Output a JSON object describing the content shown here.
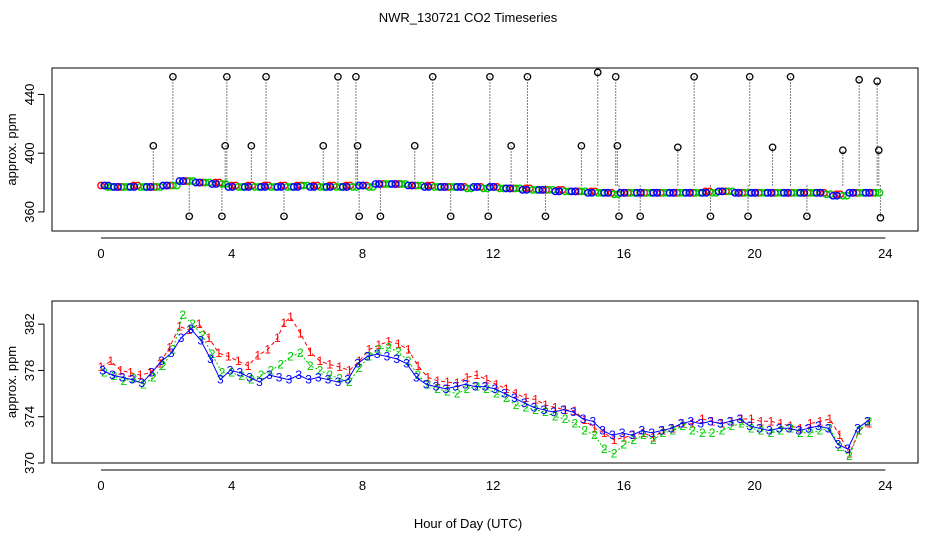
{
  "figure": {
    "title": "NWR_130721  CO2 Timeseries",
    "xlabel": "Hour of Day (UTC)"
  },
  "colors": {
    "series1": "#ff0000",
    "series2": "#00cc00",
    "series3": "#0000ff",
    "marker": "#000000",
    "cyan": "#00e5ee"
  },
  "chart_data": [
    {
      "type": "scatter",
      "panel": "top",
      "ylabel": "approx. ppm",
      "xlim": [
        -1.5,
        25
      ],
      "ylim": [
        347,
        458
      ],
      "x_ticks": [
        0,
        4,
        8,
        12,
        16,
        20,
        24
      ],
      "y_ticks": [
        360,
        400,
        440
      ],
      "series": [
        {
          "x": [
            0.0,
            0.5,
            1.0,
            1.5,
            2.0,
            2.5,
            3.0,
            3.5,
            4.0,
            4.5,
            5.0,
            5.5,
            6.0,
            6.5,
            7.0,
            7.5,
            8.0,
            8.5,
            9.0,
            9.5,
            10.0,
            10.5,
            11.0,
            11.5,
            12.0,
            12.5,
            13.0,
            13.5,
            14.0,
            14.5,
            15.0,
            15.5,
            16.0,
            16.5,
            17.0,
            17.5,
            18.0,
            18.5,
            19.0,
            19.5,
            20.0,
            20.5,
            21.0,
            21.5,
            22.0,
            22.5,
            23.0,
            23.5
          ],
          "y": [
            378,
            377,
            378,
            377,
            378,
            381,
            380,
            380,
            378,
            378,
            378,
            378,
            378,
            378,
            378,
            378,
            378,
            379,
            379,
            378,
            378,
            377,
            377,
            377,
            377,
            376,
            376,
            375,
            375,
            374,
            374,
            373,
            373,
            373,
            373,
            373,
            373,
            374,
            374,
            373,
            373,
            373,
            373,
            373,
            373,
            372,
            373,
            373
          ]
        },
        {
          "x": [
            0.2,
            0.7,
            1.2,
            1.7,
            2.2,
            2.7,
            3.2,
            3.7,
            4.2,
            4.7,
            5.2,
            5.7,
            6.2,
            6.7,
            7.2,
            7.7,
            8.2,
            8.7,
            9.2,
            9.7,
            10.2,
            10.7,
            11.2,
            11.7,
            12.2,
            12.7,
            13.2,
            13.7,
            14.2,
            14.7,
            15.2,
            15.7,
            16.2,
            16.7,
            17.2,
            17.7,
            18.2,
            18.7,
            19.2,
            19.7,
            20.2,
            20.7,
            21.2,
            21.7,
            22.2,
            22.7,
            23.2,
            23.7
          ],
          "y": [
            377,
            377,
            377,
            377,
            378,
            381,
            380,
            379,
            377,
            377,
            377,
            377,
            378,
            377,
            377,
            377,
            377,
            379,
            379,
            378,
            377,
            377,
            376,
            376,
            376,
            376,
            375,
            375,
            374,
            374,
            373,
            372,
            373,
            373,
            373,
            373,
            373,
            373,
            374,
            373,
            373,
            373,
            373,
            373,
            372,
            371,
            373,
            373
          ]
        },
        {
          "x": [
            0.1,
            0.4,
            0.9,
            1.4,
            1.9,
            2.4,
            2.9,
            3.4,
            3.9,
            4.4,
            4.9,
            5.4,
            5.9,
            6.4,
            6.9,
            7.4,
            7.9,
            8.4,
            8.9,
            9.4,
            9.9,
            10.4,
            10.9,
            11.4,
            11.9,
            12.4,
            12.9,
            13.4,
            13.9,
            14.4,
            14.9,
            15.4,
            15.9,
            16.4,
            16.9,
            17.4,
            17.9,
            18.4,
            18.9,
            19.4,
            19.9,
            20.4,
            20.9,
            21.4,
            21.9,
            22.4,
            22.9,
            23.4
          ],
          "y": [
            378,
            377,
            377,
            377,
            378,
            381,
            380,
            379,
            377,
            377,
            377,
            377,
            377,
            377,
            377,
            377,
            378,
            379,
            379,
            378,
            377,
            377,
            377,
            377,
            377,
            376,
            375,
            375,
            374,
            374,
            373,
            373,
            373,
            373,
            373,
            373,
            373,
            373,
            374,
            373,
            373,
            373,
            373,
            373,
            373,
            371,
            373,
            373
          ]
        }
      ],
      "spikes": {
        "x": [
          1.6,
          2.2,
          2.7,
          3.7,
          3.8,
          3.85,
          4.6,
          5.05,
          5.6,
          6.8,
          7.25,
          7.8,
          7.85,
          7.9,
          8.55,
          9.6,
          10.15,
          10.7,
          11.85,
          11.9,
          12.55,
          13.05,
          13.6,
          14.7,
          15.2,
          15.75,
          15.8,
          15.85,
          16.5,
          17.65,
          18.15,
          18.65,
          19.8,
          19.85,
          20.55,
          21.1,
          21.6,
          22.7,
          23.2,
          23.75,
          23.8,
          23.85
        ],
        "y": [
          405,
          452,
          357,
          357,
          405,
          452,
          405,
          452,
          357,
          405,
          452,
          452,
          405,
          357,
          357,
          405,
          452,
          357,
          357,
          452,
          405,
          452,
          357,
          405,
          455,
          452,
          405,
          357,
          357,
          404,
          452,
          357,
          357,
          452,
          404,
          452,
          357,
          402,
          450,
          449,
          402,
          356
        ]
      }
    },
    {
      "type": "line",
      "panel": "bottom",
      "ylabel": "approx. ppm",
      "xlim": [
        -1.5,
        25
      ],
      "ylim": [
        370,
        384
      ],
      "x_ticks": [
        0,
        4,
        8,
        12,
        16,
        20,
        24
      ],
      "y_ticks": [
        370,
        374,
        378,
        382
      ],
      "series": [
        {
          "name": "1",
          "x": [
            0.0,
            0.3,
            0.6,
            0.9,
            1.2,
            1.5,
            1.8,
            2.1,
            2.4,
            2.7,
            3.0,
            3.3,
            3.6,
            3.9,
            4.2,
            4.5,
            4.8,
            5.1,
            5.4,
            5.6,
            5.8,
            6.1,
            6.4,
            6.7,
            7.0,
            7.3,
            7.6,
            7.9,
            8.2,
            8.5,
            8.8,
            9.1,
            9.4,
            9.7,
            10.0,
            10.3,
            10.6,
            10.9,
            11.2,
            11.5,
            11.8,
            12.1,
            12.4,
            12.7,
            13.0,
            13.3,
            13.6,
            13.9,
            14.2,
            14.5,
            14.8,
            15.1,
            15.4,
            15.7,
            16.0,
            16.3,
            16.6,
            16.9,
            17.2,
            17.5,
            17.8,
            18.1,
            18.4,
            18.7,
            19.0,
            19.3,
            19.6,
            19.9,
            20.2,
            20.5,
            20.8,
            21.1,
            21.4,
            21.7,
            22.0,
            22.3,
            22.6,
            22.9,
            23.2,
            23.5
          ],
          "y": [
            378.3,
            378.8,
            378.0,
            377.8,
            377.6,
            377.8,
            378.6,
            380.0,
            381.8,
            381.5,
            382.0,
            380.8,
            379.5,
            379.2,
            378.8,
            378.4,
            379.3,
            379.8,
            380.8,
            382.1,
            382.6,
            381.2,
            379.6,
            378.8,
            378.5,
            378.3,
            378.0,
            378.8,
            379.8,
            380.2,
            380.5,
            380.3,
            379.8,
            378.4,
            377.4,
            377.1,
            377.0,
            376.9,
            377.4,
            377.6,
            377.2,
            376.8,
            376.4,
            376.0,
            375.6,
            375.5,
            375.0,
            374.8,
            374.6,
            374.5,
            373.7,
            373.0,
            372.6,
            372.0,
            372.2,
            372.4,
            372.6,
            372.2,
            372.8,
            373.0,
            373.4,
            373.4,
            373.8,
            373.6,
            373.4,
            373.6,
            373.8,
            373.8,
            373.6,
            373.6,
            373.4,
            373.2,
            373.0,
            373.4,
            373.6,
            373.8,
            372.4,
            370.8,
            372.8,
            373.4
          ]
        },
        {
          "name": "2",
          "x": [
            0.1,
            0.4,
            0.7,
            1.0,
            1.3,
            1.6,
            1.9,
            2.2,
            2.5,
            2.8,
            3.1,
            3.4,
            3.7,
            4.0,
            4.3,
            4.6,
            4.9,
            5.2,
            5.5,
            5.8,
            6.1,
            6.4,
            6.7,
            7.0,
            7.3,
            7.6,
            7.9,
            8.2,
            8.5,
            8.8,
            9.1,
            9.4,
            9.7,
            10.0,
            10.3,
            10.6,
            10.9,
            11.2,
            11.5,
            11.8,
            12.1,
            12.4,
            12.7,
            13.0,
            13.3,
            13.6,
            13.9,
            14.2,
            14.5,
            14.8,
            15.1,
            15.4,
            15.7,
            16.0,
            16.3,
            16.6,
            16.9,
            17.2,
            17.5,
            17.8,
            18.1,
            18.4,
            18.7,
            19.0,
            19.3,
            19.6,
            19.9,
            20.2,
            20.5,
            20.8,
            21.1,
            21.4,
            21.7,
            22.0,
            22.3,
            22.6,
            22.9,
            23.2,
            23.5
          ],
          "y": [
            377.8,
            377.5,
            377.1,
            377.3,
            376.8,
            377.4,
            378.4,
            379.8,
            382.8,
            382.0,
            381.0,
            379.4,
            377.8,
            377.8,
            377.5,
            377.2,
            377.6,
            378.0,
            378.5,
            379.2,
            379.5,
            378.4,
            378.0,
            377.6,
            377.3,
            377.0,
            378.2,
            379.2,
            379.8,
            380.0,
            379.6,
            378.8,
            377.6,
            376.8,
            376.4,
            376.2,
            376.0,
            376.4,
            376.6,
            376.4,
            376.0,
            375.6,
            375.0,
            374.8,
            374.6,
            374.4,
            374.0,
            373.8,
            373.4,
            372.8,
            372.4,
            371.2,
            370.8,
            371.6,
            372.0,
            372.4,
            372.0,
            372.6,
            372.8,
            373.2,
            372.8,
            372.6,
            372.6,
            372.8,
            373.2,
            373.4,
            373.0,
            372.8,
            372.6,
            372.8,
            373.0,
            372.6,
            372.6,
            372.8,
            373.0,
            371.4,
            370.6,
            372.8,
            373.6
          ]
        },
        {
          "name": "3",
          "x": [
            0.05,
            0.35,
            0.65,
            0.95,
            1.25,
            1.55,
            1.85,
            2.15,
            2.45,
            2.75,
            3.05,
            3.35,
            3.65,
            3.95,
            4.25,
            4.55,
            4.85,
            5.15,
            5.45,
            5.75,
            6.05,
            6.35,
            6.65,
            6.95,
            7.25,
            7.55,
            7.85,
            8.15,
            8.45,
            8.75,
            9.05,
            9.35,
            9.65,
            9.95,
            10.25,
            10.55,
            10.85,
            11.15,
            11.45,
            11.75,
            12.05,
            12.35,
            12.65,
            12.95,
            13.25,
            13.55,
            13.85,
            14.15,
            14.45,
            14.75,
            15.05,
            15.35,
            15.65,
            15.95,
            16.25,
            16.55,
            16.85,
            17.15,
            17.45,
            17.75,
            18.05,
            18.35,
            18.65,
            18.95,
            19.25,
            19.55,
            19.85,
            20.15,
            20.45,
            20.75,
            21.05,
            21.35,
            21.65,
            21.95,
            22.25,
            22.55,
            22.85,
            23.15,
            23.45
          ],
          "y": [
            378.0,
            377.6,
            377.4,
            377.2,
            376.9,
            377.8,
            378.8,
            379.5,
            380.8,
            381.6,
            380.6,
            379.0,
            377.2,
            378.0,
            377.8,
            377.4,
            377.0,
            377.6,
            377.4,
            377.2,
            377.6,
            377.2,
            377.4,
            377.2,
            377.0,
            377.2,
            378.6,
            379.2,
            379.4,
            379.2,
            379.0,
            378.6,
            377.4,
            376.8,
            376.6,
            376.4,
            376.6,
            376.8,
            376.6,
            376.6,
            376.4,
            376.0,
            375.6,
            375.2,
            374.8,
            374.6,
            374.4,
            374.6,
            374.4,
            373.8,
            373.6,
            372.8,
            372.4,
            372.6,
            372.4,
            372.8,
            372.6,
            372.8,
            373.0,
            373.4,
            373.6,
            373.4,
            373.6,
            373.4,
            373.6,
            373.8,
            373.2,
            373.0,
            372.8,
            373.0,
            373.0,
            372.8,
            373.0,
            373.2,
            373.0,
            371.6,
            371.2,
            373.0,
            373.6
          ]
        }
      ]
    }
  ]
}
